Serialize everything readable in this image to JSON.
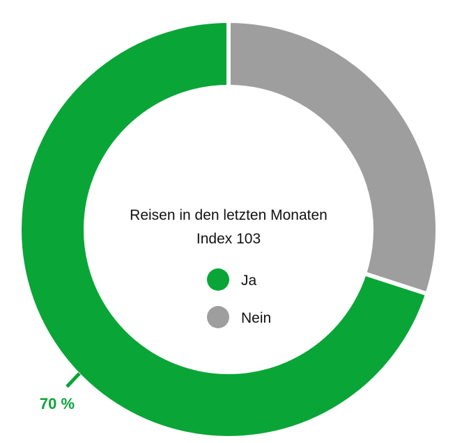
{
  "chart_data": {
    "type": "pie",
    "variant": "donut",
    "title": "Reisen in den letzten Monaten",
    "subtitle": "Index 103",
    "categories": [
      "Ja",
      "Nein"
    ],
    "values": [
      70,
      30
    ],
    "unit": "%",
    "colors": [
      "#0aa537",
      "#9e9e9e"
    ],
    "data_labels": [
      "70 %",
      ""
    ],
    "legend": {
      "placement": "center",
      "items": [
        {
          "label": "Ja",
          "color": "#0aa537"
        },
        {
          "label": "Nein",
          "color": "#9e9e9e"
        }
      ]
    }
  }
}
